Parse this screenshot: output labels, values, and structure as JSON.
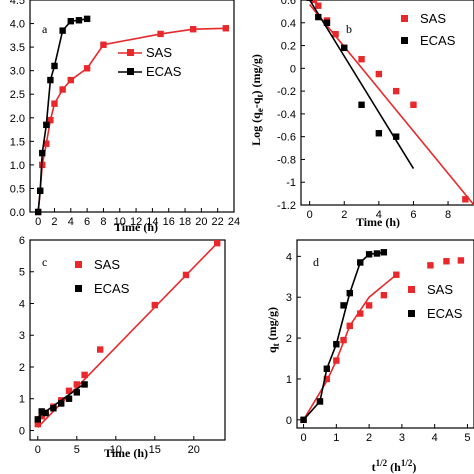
{
  "colors": {
    "SAS": "#e8282b",
    "ECAS": "#000000"
  },
  "chart_data": [
    {
      "label": "a",
      "type": "line",
      "xlabel": "Time (h)",
      "ylabel": "",
      "xlim": [
        -1,
        24
      ],
      "ylim": [
        0,
        4.5
      ],
      "xticks": [
        "0",
        "2",
        "4",
        "6",
        "8",
        "10",
        "12",
        "14",
        "16",
        "18",
        "20",
        "22",
        "24"
      ],
      "yticks": [
        "0.0",
        "0.5",
        "1.0",
        "1.5",
        "2.0",
        "2.5",
        "3.0",
        "3.5",
        "4.0",
        "4.5"
      ],
      "legend": [
        "SAS",
        "ECAS"
      ],
      "series": [
        {
          "name": "SAS",
          "marker_line": true,
          "x": [
            0,
            0.25,
            0.5,
            1,
            1.5,
            2,
            3,
            4,
            6,
            8,
            15,
            19,
            23
          ],
          "y": [
            0,
            0.45,
            1.0,
            1.45,
            1.95,
            2.3,
            2.6,
            2.8,
            3.05,
            3.55,
            3.78,
            3.88,
            3.9
          ]
        },
        {
          "name": "ECAS",
          "marker_line": true,
          "x": [
            0,
            0.25,
            0.5,
            1,
            1.5,
            2,
            3,
            4,
            5,
            6
          ],
          "y": [
            0,
            0.45,
            1.25,
            1.85,
            2.8,
            3.1,
            3.85,
            4.05,
            4.07,
            4.1
          ]
        }
      ]
    },
    {
      "label": "b",
      "type": "scatter",
      "xlabel": "Time (h)",
      "ylabel": "Log (qe-qt) (mg/g)",
      "xlim": [
        -0.5,
        9.5
      ],
      "ylim": [
        -1.2,
        0.6
      ],
      "xticks": [
        "0",
        "2",
        "4",
        "6",
        "8"
      ],
      "yticks": [
        "0.6",
        "0.4",
        "0.2",
        "0",
        "-0.2",
        "-0.4",
        "-0.6",
        "-0.8",
        "-1",
        "-1.2"
      ],
      "legend": [
        "SAS",
        "ECAS"
      ],
      "series": [
        {
          "name": "SAS",
          "x": [
            0,
            0.25,
            0.5,
            1,
            1.5,
            2,
            3,
            4,
            5,
            6,
            9
          ],
          "y": [
            0.62,
            0.6,
            0.55,
            0.42,
            0.3,
            0.18,
            0.08,
            -0.05,
            -0.2,
            -0.32,
            -1.15
          ],
          "fit": [
            [
              0,
              0.56
            ],
            [
              9.5,
              -1.2
            ]
          ]
        },
        {
          "name": "ECAS",
          "x": [
            0,
            0.5,
            1,
            2,
            3,
            4,
            5
          ],
          "y": [
            0.62,
            0.45,
            0.4,
            0.18,
            -0.32,
            -0.57,
            -0.6
          ],
          "fit": [
            [
              0,
              0.6
            ],
            [
              6,
              -0.88
            ]
          ]
        }
      ]
    },
    {
      "label": "c",
      "type": "scatter",
      "xlabel": "Time (h)",
      "ylabel": "",
      "xlim": [
        -1,
        24
      ],
      "ylim": [
        -0.3,
        6
      ],
      "xticks": [
        "0",
        "5",
        "10",
        "15",
        "20"
      ],
      "yticks": [
        "0",
        "1",
        "2",
        "3",
        "4",
        "5",
        "6"
      ],
      "legend": [
        "SAS",
        "ECAS"
      ],
      "series": [
        {
          "name": "SAS",
          "x": [
            0,
            0.5,
            1,
            2,
            3,
            4,
            5,
            6,
            8,
            15,
            19,
            23
          ],
          "y": [
            0.2,
            0.45,
            0.55,
            0.75,
            0.95,
            1.25,
            1.45,
            1.75,
            2.55,
            3.95,
            4.9,
            5.9
          ],
          "fit": [
            [
              0,
              0.1
            ],
            [
              23,
              5.9
            ]
          ]
        },
        {
          "name": "ECAS",
          "x": [
            0,
            0.5,
            1,
            2,
            3,
            4,
            5,
            6
          ],
          "y": [
            0.35,
            0.6,
            0.55,
            0.7,
            0.85,
            1.0,
            1.2,
            1.45
          ],
          "fit": [
            [
              0,
              0.42
            ],
            [
              6,
              1.48
            ]
          ]
        }
      ]
    },
    {
      "label": "d",
      "type": "scatter",
      "xlabel": "t1/2 (h1/2)",
      "ylabel": "qt (mg/g)",
      "xlim": [
        -0.2,
        5.2
      ],
      "ylim": [
        -0.2,
        4.4
      ],
      "xticks": [
        "0",
        "1",
        "2",
        "3",
        "4",
        "5"
      ],
      "yticks": [
        "0",
        "1",
        "2",
        "3",
        "4"
      ],
      "legend": [
        "SAS",
        "ECAS"
      ],
      "series": [
        {
          "name": "SAS",
          "x": [
            0,
            0.5,
            0.71,
            1,
            1.22,
            1.41,
            1.73,
            2,
            2.45,
            2.83,
            3.87,
            4.36,
            4.8
          ],
          "y": [
            0,
            0.45,
            1.0,
            1.45,
            1.95,
            2.3,
            2.6,
            2.8,
            3.05,
            3.55,
            3.78,
            3.88,
            3.9
          ],
          "fit": [
            [
              0,
              0
            ],
            [
              0.71,
              0.95
            ],
            [
              1,
              1.45
            ],
            [
              1.41,
              2.3
            ],
            [
              2,
              3.0
            ],
            [
              2.83,
              3.55
            ]
          ]
        },
        {
          "name": "ECAS",
          "x": [
            0,
            0.5,
            0.71,
            1,
            1.22,
            1.41,
            1.73,
            2,
            2.24,
            2.45
          ],
          "y": [
            0,
            0.45,
            1.25,
            1.85,
            2.8,
            3.1,
            3.85,
            4.05,
            4.07,
            4.1
          ],
          "fit": [
            [
              0,
              0
            ],
            [
              0.5,
              0.45
            ],
            [
              0.71,
              1.25
            ],
            [
              1,
              1.85
            ],
            [
              1.41,
              3.1
            ],
            [
              1.73,
              3.85
            ],
            [
              2,
              4.05
            ],
            [
              2.45,
              4.1
            ]
          ]
        }
      ]
    }
  ]
}
